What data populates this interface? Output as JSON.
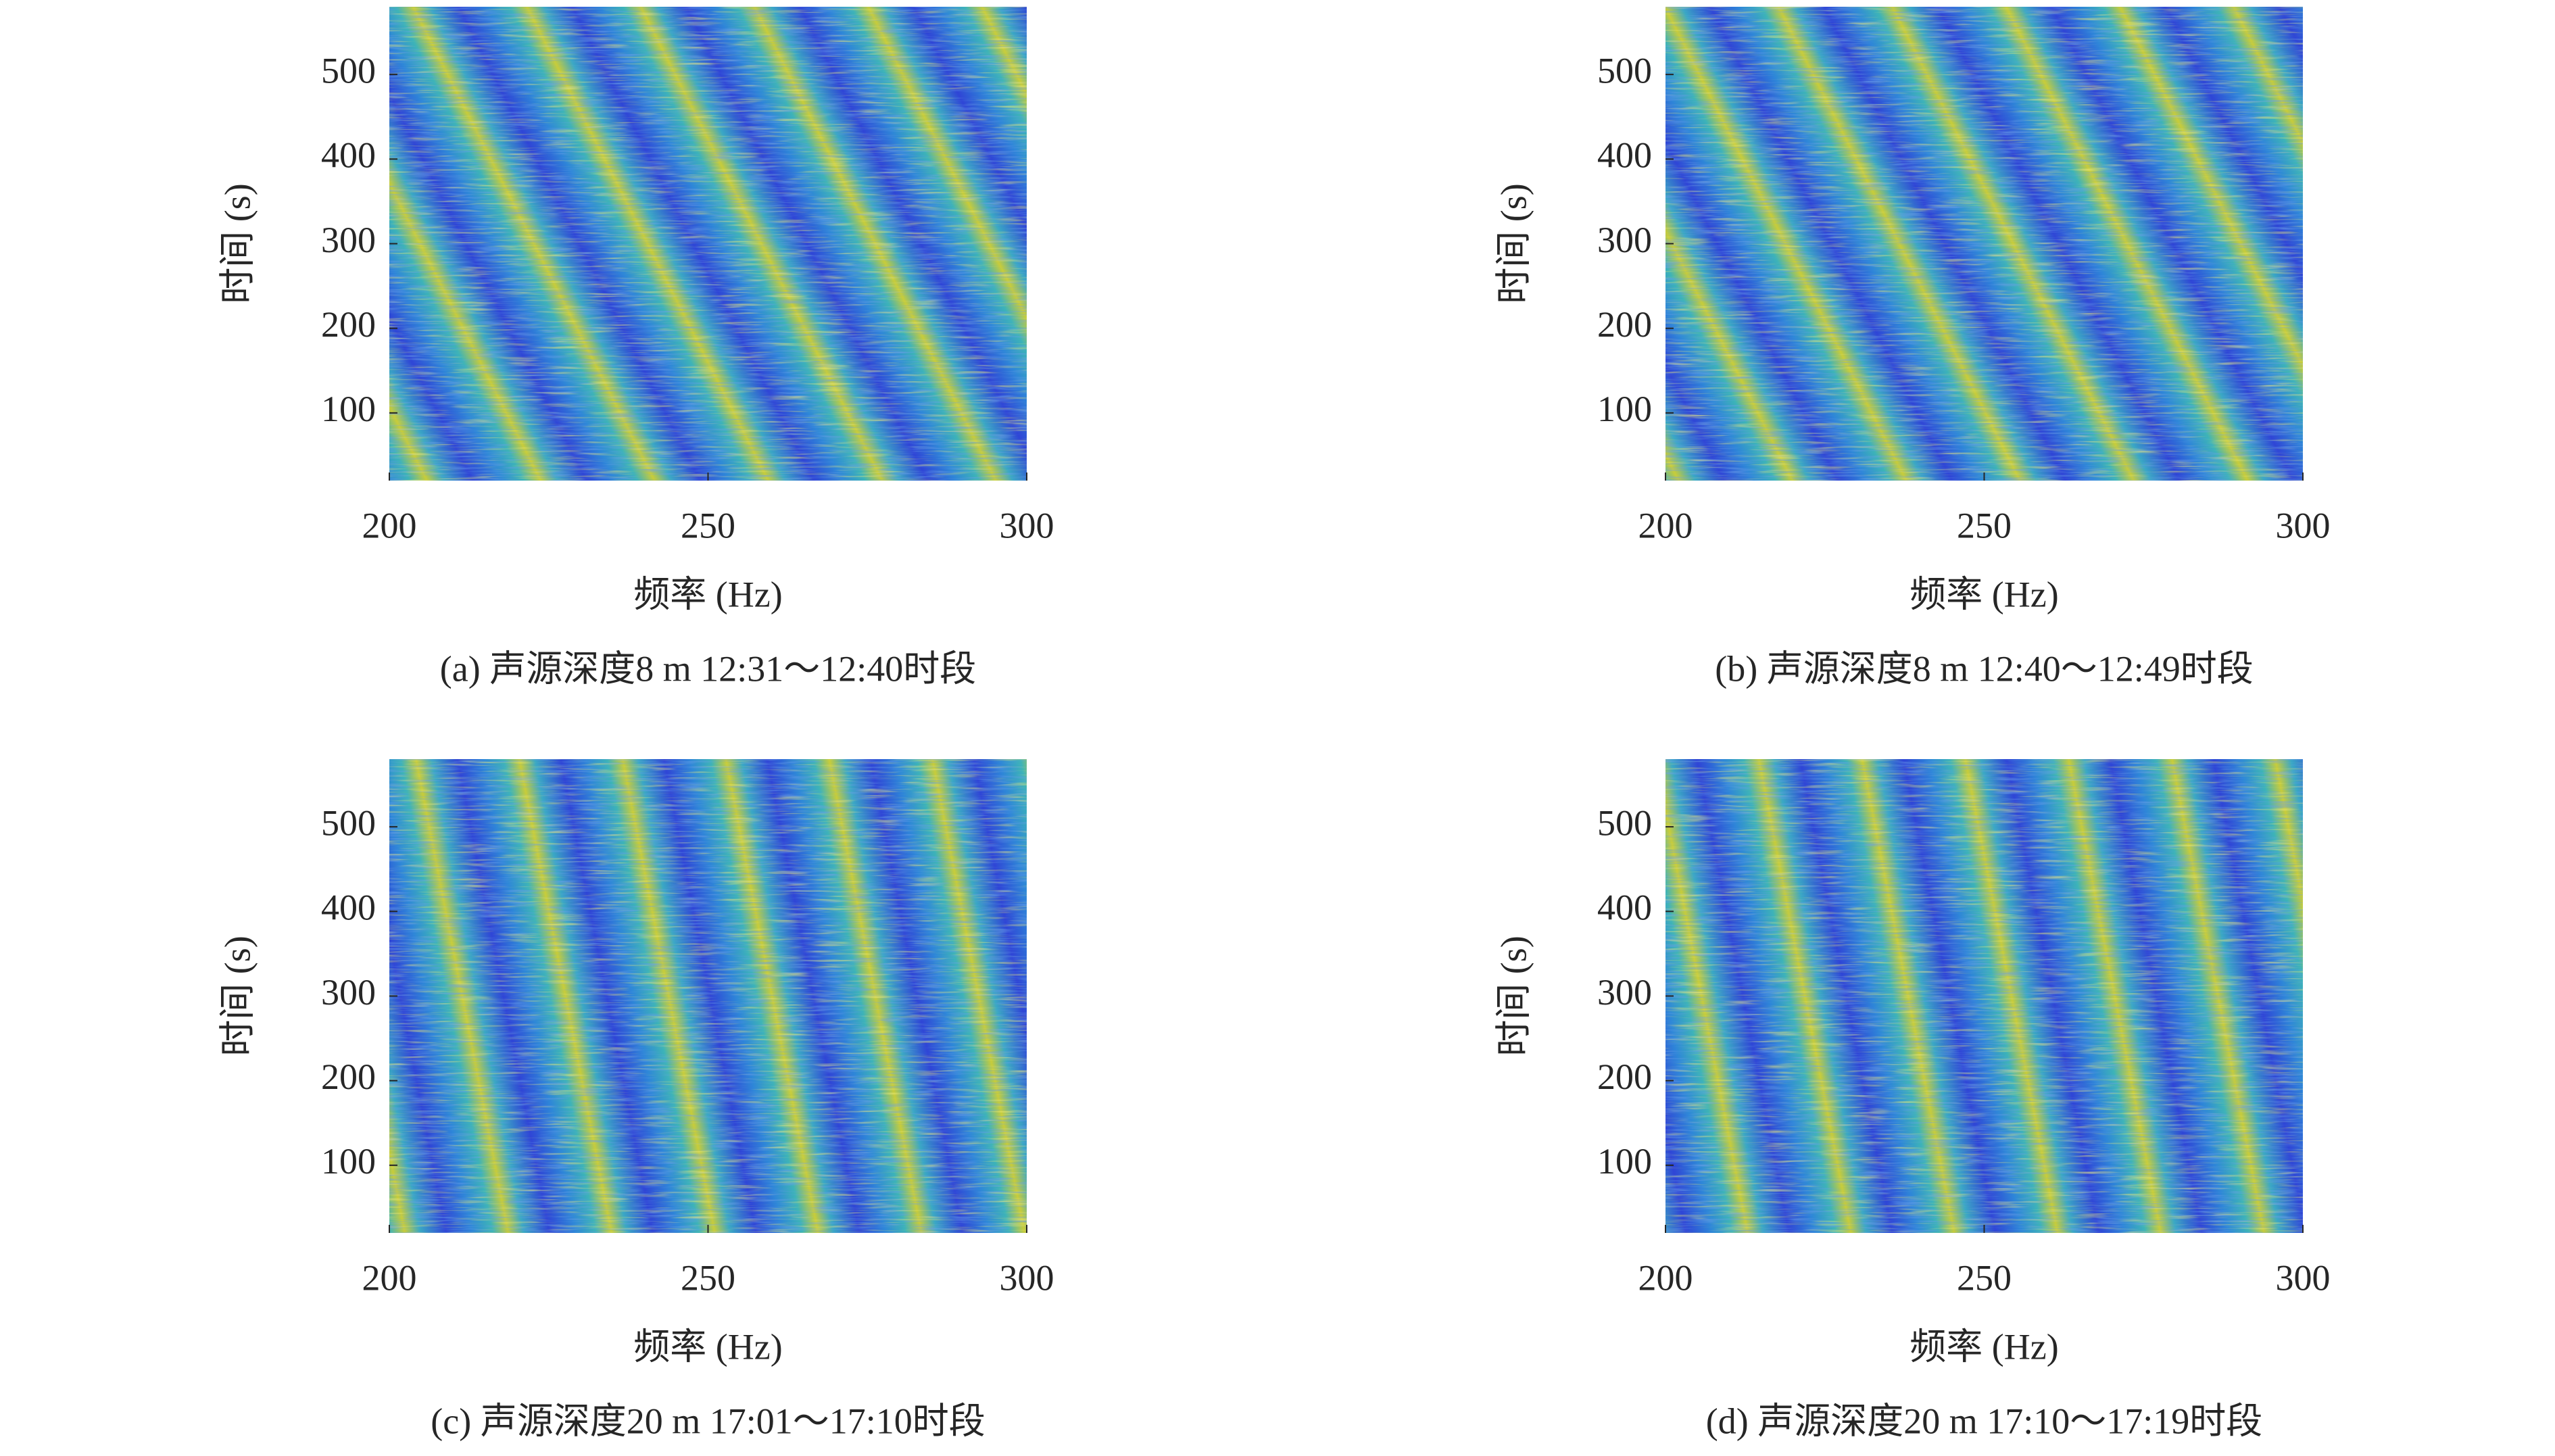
{
  "chart_data": [
    {
      "type": "heatmap",
      "caption": "(a) 声源深度8 m 12:31～12:40时段",
      "xlabel": "频率 (Hz)",
      "ylabel": "时间 (s)",
      "xlim": [
        200,
        300
      ],
      "ylim": [
        20,
        580
      ],
      "xticks": [
        200,
        250,
        300
      ],
      "yticks": [
        100,
        200,
        300,
        400,
        500
      ]
    },
    {
      "type": "heatmap",
      "caption": "(b) 声源深度8 m 12:40～12:49时段",
      "xlabel": "频率 (Hz)",
      "ylabel": "时间 (s)",
      "xlim": [
        200,
        300
      ],
      "ylim": [
        20,
        580
      ],
      "xticks": [
        200,
        250,
        300
      ],
      "yticks": [
        100,
        200,
        300,
        400,
        500
      ]
    },
    {
      "type": "heatmap",
      "caption": "(c) 声源深度20 m 17:01～17:10时段",
      "xlabel": "频率 (Hz)",
      "ylabel": "时间 (s)",
      "xlim": [
        200,
        300
      ],
      "ylim": [
        20,
        580
      ],
      "xticks": [
        200,
        250,
        300
      ],
      "yticks": [
        100,
        200,
        300,
        400,
        500
      ]
    },
    {
      "type": "heatmap",
      "caption": "(d) 声源深度20 m 17:10～17:19时段",
      "xlabel": "频率 (Hz)",
      "ylabel": "时间 (s)",
      "xlim": [
        200,
        300
      ],
      "ylim": [
        20,
        580
      ],
      "xticks": [
        200,
        250,
        300
      ],
      "yticks": [
        100,
        200,
        300,
        400,
        500
      ]
    }
  ]
}
